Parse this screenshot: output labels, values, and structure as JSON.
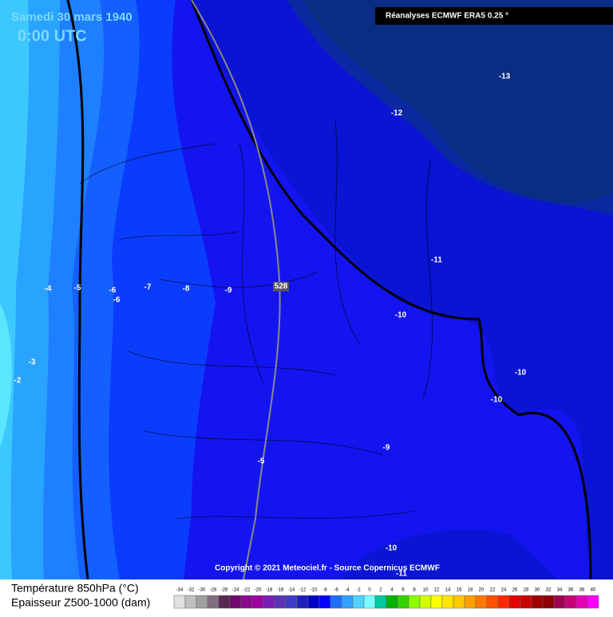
{
  "header": {
    "date": "Samedi 30 mars 1940",
    "time": "0:00 UTC",
    "source": "Réanalyses ECMWF ERA5 0.25 °"
  },
  "contour_labels": [
    "-13",
    "-12",
    "-11",
    "-10",
    "-10",
    "-10",
    "-9",
    "-8",
    "-7",
    "-6",
    "-6",
    "-5",
    "-4",
    "-3",
    "-2",
    "-9",
    "-5",
    "-10",
    "-11",
    "528"
  ],
  "copyright": "Copyright © 2021 Meteociel.fr - Source Copernicus ECMWF",
  "legend": {
    "line1": "Température 850hPa (°C)",
    "line2": "Epaisseur Z500-1000 (dam)",
    "labels": [
      -34,
      -32,
      -30,
      -28,
      -26,
      -24,
      -22,
      -20,
      -18,
      -16,
      -14,
      -12,
      -10,
      -8,
      -6,
      -4,
      -2,
      0,
      2,
      4,
      6,
      8,
      10,
      12,
      14,
      16,
      18,
      20,
      22,
      24,
      26,
      28,
      30,
      32,
      34,
      36,
      38,
      40
    ],
    "colors": [
      "#e0e0e0",
      "#c0c0c0",
      "#a0a0a0",
      "#806e80",
      "#5a2850",
      "#6e0a6e",
      "#8c0a8c",
      "#a000a0",
      "#781eb4",
      "#5a32b4",
      "#3c3cc8",
      "#1e1ebe",
      "#0000c8",
      "#0000ff",
      "#1e6eff",
      "#32a0ff",
      "#50d2ff",
      "#78ffff",
      "#00c8a0",
      "#00b400",
      "#32d200",
      "#8cff00",
      "#d2ff00",
      "#ffff00",
      "#ffe600",
      "#ffc800",
      "#ffa000",
      "#ff7800",
      "#ff5000",
      "#ff2800",
      "#e60000",
      "#c80000",
      "#a00000",
      "#8c0000",
      "#a00050",
      "#c80078",
      "#e600b4",
      "#ff00ff"
    ]
  }
}
